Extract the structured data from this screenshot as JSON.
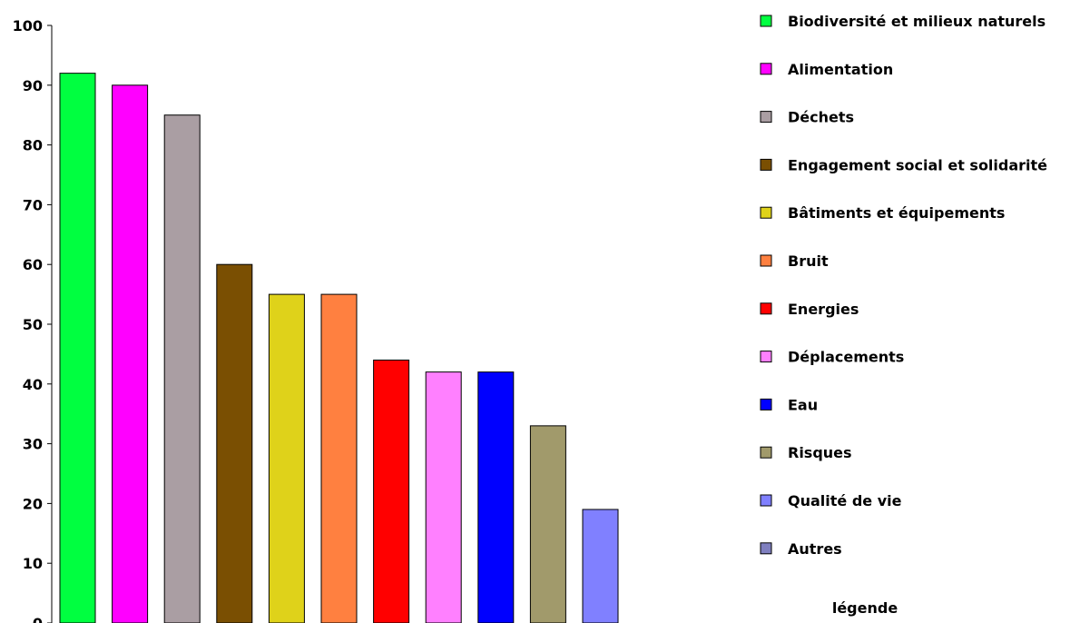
{
  "chart_data": {
    "type": "bar",
    "categories": [
      "Biodiversité et milieux naturels",
      "Alimentation",
      "Déchets",
      "Engagement social et solidarité",
      "Bâtiments et équipements",
      "Bruit",
      "Energies",
      "Déplacements",
      "Eau",
      "Risques",
      "Qualité de vie",
      "Autres"
    ],
    "values": [
      92,
      90,
      85,
      60,
      55,
      55,
      44,
      42,
      42,
      33,
      19,
      0
    ],
    "colors": [
      "#00ff40",
      "#ff00ff",
      "#aa9ea3",
      "#7a4f02",
      "#dfd21a",
      "#ff8040",
      "#ff0000",
      "#ff80ff",
      "#0000ff",
      "#a19a6b",
      "#8080ff",
      "#7f7fbf"
    ],
    "ylim": [
      0,
      100
    ],
    "yticks": [
      0,
      10,
      20,
      30,
      40,
      50,
      60,
      70,
      80,
      90,
      100
    ],
    "title": "",
    "xlabel": "",
    "ylabel": "",
    "grid": false,
    "legend_position": "right",
    "legend_title": "légende"
  }
}
